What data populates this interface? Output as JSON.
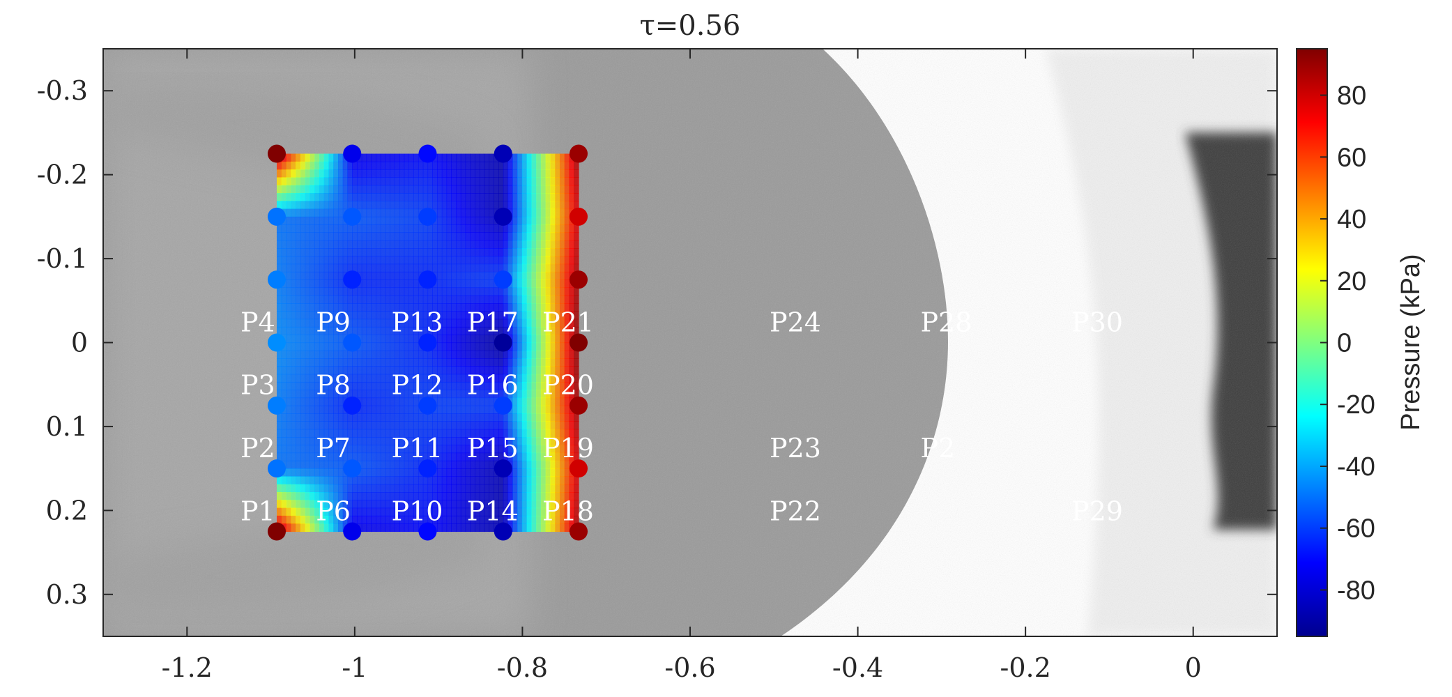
{
  "chart_data": {
    "type": "contour",
    "title": "τ=0.56",
    "xlim": [
      -1.3,
      0.1
    ],
    "ylim": [
      -0.35,
      0.35
    ],
    "y_reversed": true,
    "xticks": [
      {
        "value": -1.2,
        "label": "-1.2"
      },
      {
        "value": -1.0,
        "label": "-1"
      },
      {
        "value": -0.8,
        "label": "-0.8"
      },
      {
        "value": -0.6,
        "label": "-0.6"
      },
      {
        "value": -0.4,
        "label": "-0.4"
      },
      {
        "value": -0.2,
        "label": "-0.2"
      },
      {
        "value": 0.0,
        "label": "0"
      }
    ],
    "yticks": [
      {
        "value": -0.3,
        "label": "-0.3"
      },
      {
        "value": -0.2,
        "label": "-0.2"
      },
      {
        "value": -0.1,
        "label": "-0.1"
      },
      {
        "value": 0.0,
        "label": "0"
      },
      {
        "value": 0.1,
        "label": "0.1"
      },
      {
        "value": 0.2,
        "label": "0.2"
      },
      {
        "value": 0.3,
        "label": "0.3"
      }
    ],
    "colorbar": {
      "label": "Pressure (kPa)",
      "range": [
        -95,
        95
      ],
      "colormap": "jet",
      "ticks": [
        {
          "value": 80,
          "label": "80"
        },
        {
          "value": 60,
          "label": "60"
        },
        {
          "value": 40,
          "label": "40"
        },
        {
          "value": 20,
          "label": "20"
        },
        {
          "value": 0,
          "label": "0"
        },
        {
          "value": -20,
          "label": "-20"
        },
        {
          "value": -40,
          "label": "-40"
        },
        {
          "value": -60,
          "label": "-60"
        },
        {
          "value": -80,
          "label": "-80"
        }
      ]
    },
    "sensor_columns": [
      {
        "x": -1.093,
        "points": [
          {
            "y": -0.225,
            "p": 95
          },
          {
            "y": -0.15,
            "p": -50
          },
          {
            "y": -0.075,
            "p": -48
          },
          {
            "y": 0.0,
            "p": -45
          },
          {
            "y": 0.075,
            "p": -48
          },
          {
            "y": 0.15,
            "p": -50
          },
          {
            "y": 0.225,
            "p": 95
          }
        ]
      },
      {
        "x": -1.003,
        "points": [
          {
            "y": -0.225,
            "p": -75
          },
          {
            "y": -0.15,
            "p": -55
          },
          {
            "y": -0.075,
            "p": -65
          },
          {
            "y": 0.0,
            "p": -55
          },
          {
            "y": 0.075,
            "p": -65
          },
          {
            "y": 0.15,
            "p": -55
          },
          {
            "y": 0.225,
            "p": -75
          }
        ]
      },
      {
        "x": -0.913,
        "points": [
          {
            "y": -0.225,
            "p": -70
          },
          {
            "y": -0.15,
            "p": -60
          },
          {
            "y": -0.075,
            "p": -65
          },
          {
            "y": 0.0,
            "p": -65
          },
          {
            "y": 0.075,
            "p": -60
          },
          {
            "y": 0.15,
            "p": -65
          },
          {
            "y": 0.225,
            "p": -70
          }
        ]
      },
      {
        "x": -0.823,
        "points": [
          {
            "y": -0.225,
            "p": -85
          },
          {
            "y": -0.15,
            "p": -85
          },
          {
            "y": -0.075,
            "p": -60
          },
          {
            "y": 0.0,
            "p": -90
          },
          {
            "y": 0.075,
            "p": -60
          },
          {
            "y": 0.15,
            "p": -85
          },
          {
            "y": 0.225,
            "p": -85
          }
        ]
      },
      {
        "x": -0.733,
        "points": [
          {
            "y": -0.225,
            "p": 90
          },
          {
            "y": -0.15,
            "p": 80
          },
          {
            "y": -0.075,
            "p": 90
          },
          {
            "y": 0.0,
            "p": 95
          },
          {
            "y": 0.075,
            "p": 90
          },
          {
            "y": 0.15,
            "p": 80
          },
          {
            "y": 0.225,
            "p": 90
          }
        ]
      }
    ],
    "labels": [
      {
        "text": "P1",
        "x": -1.093,
        "y": 0.2
      },
      {
        "text": "P2",
        "x": -1.093,
        "y": 0.125
      },
      {
        "text": "P3",
        "x": -1.093,
        "y": 0.05
      },
      {
        "text": "P4",
        "x": -1.093,
        "y": -0.025
      },
      {
        "text": "P6",
        "x": -1.003,
        "y": 0.2
      },
      {
        "text": "P7",
        "x": -1.003,
        "y": 0.125
      },
      {
        "text": "P8",
        "x": -1.003,
        "y": 0.05
      },
      {
        "text": "P9",
        "x": -1.003,
        "y": -0.025
      },
      {
        "text": "P10",
        "x": -0.913,
        "y": 0.2
      },
      {
        "text": "P11",
        "x": -0.913,
        "y": 0.125
      },
      {
        "text": "P12",
        "x": -0.913,
        "y": 0.05
      },
      {
        "text": "P13",
        "x": -0.913,
        "y": -0.025
      },
      {
        "text": "P14",
        "x": -0.823,
        "y": 0.2
      },
      {
        "text": "P15",
        "x": -0.823,
        "y": 0.125
      },
      {
        "text": "P16",
        "x": -0.823,
        "y": 0.05
      },
      {
        "text": "P17",
        "x": -0.823,
        "y": -0.025
      },
      {
        "text": "P18",
        "x": -0.733,
        "y": 0.2
      },
      {
        "text": "P19",
        "x": -0.733,
        "y": 0.125
      },
      {
        "text": "P20",
        "x": -0.733,
        "y": 0.05
      },
      {
        "text": "P21",
        "x": -0.733,
        "y": -0.025
      },
      {
        "text": "P22",
        "x": -0.462,
        "y": 0.2
      },
      {
        "text": "P23",
        "x": -0.462,
        "y": 0.125
      },
      {
        "text": "P24",
        "x": -0.462,
        "y": -0.025
      },
      {
        "text": "P28",
        "x": -0.282,
        "y": -0.025
      },
      {
        "text": "P2",
        "x": -0.282,
        "y": 0.125
      },
      {
        "text": "P29",
        "x": -0.102,
        "y": 0.2
      },
      {
        "text": "P30",
        "x": -0.102,
        "y": -0.025
      }
    ]
  }
}
